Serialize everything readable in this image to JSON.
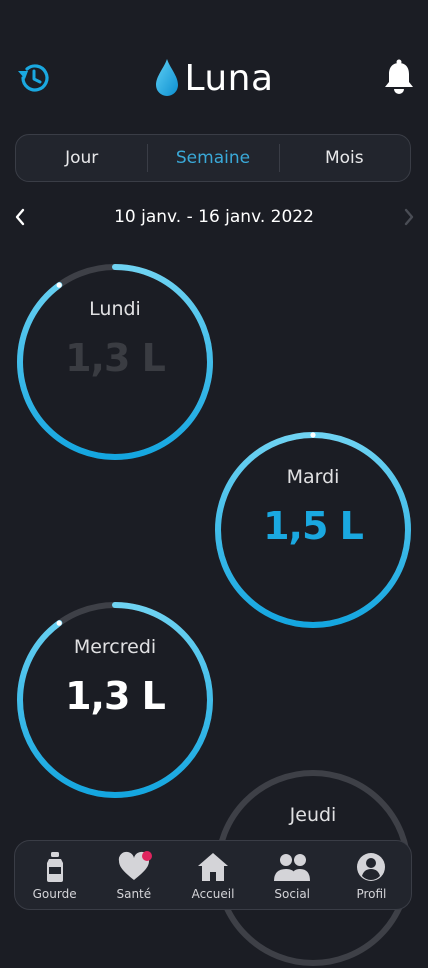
{
  "app": {
    "title": "Luna",
    "accent": "#1aa8e0",
    "background": "#1b1d24"
  },
  "tabs": [
    {
      "label": "Jour",
      "active": false
    },
    {
      "label": "Semaine",
      "active": true
    },
    {
      "label": "Mois",
      "active": false
    }
  ],
  "date_range": "10 janv. - 16 janv. 2022",
  "days": [
    {
      "name": "Lundi",
      "value": "1,3 L",
      "progress": 0.9,
      "value_color": "#3a3c42"
    },
    {
      "name": "Mardi",
      "value": "1,5 L",
      "progress": 1.0,
      "value_color": "#1aa8e0"
    },
    {
      "name": "Mercredi",
      "value": "1,3 L",
      "progress": 0.9,
      "value_color": "#ffffff"
    },
    {
      "name": "Jeudi",
      "value": "",
      "progress": 0,
      "value_color": "#ffffff"
    }
  ],
  "nav": [
    {
      "label": "Gourde",
      "icon": "bottle-icon"
    },
    {
      "label": "Santé",
      "icon": "heart-icon",
      "badge": true
    },
    {
      "label": "Accueil",
      "icon": "home-icon"
    },
    {
      "label": "Social",
      "icon": "people-icon"
    },
    {
      "label": "Profil",
      "icon": "profile-icon"
    }
  ]
}
